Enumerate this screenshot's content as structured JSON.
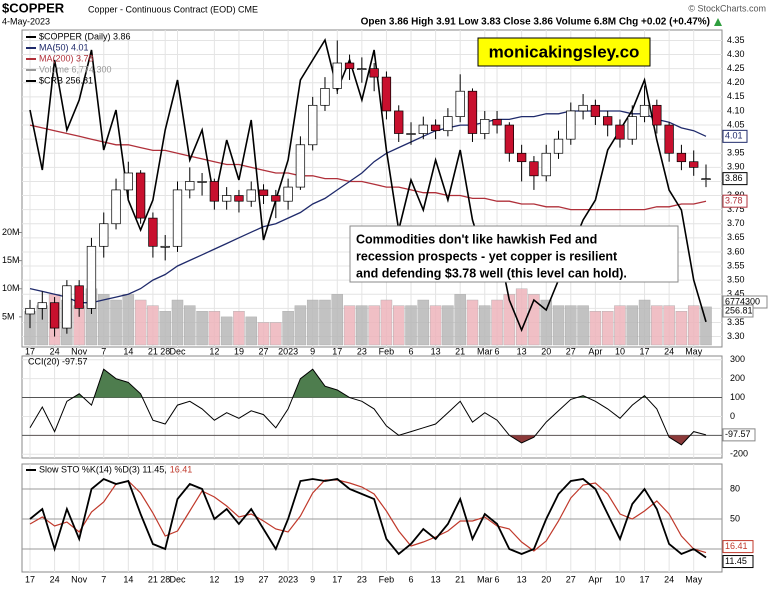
{
  "chart_data": {
    "type": "candlestick",
    "title": "$COPPER",
    "subtitle": "Copper - Continuous Contract (EOD) CME",
    "date": "4-May-2023",
    "quote": "Open 3.86 High 3.91 Low 3.83 Close 3.86 Volume 6.8M Chg +0.02 (+0.47%)",
    "credit": "© StockCharts.com",
    "watermark": "monicakingsley.co",
    "annotation": [
      "Commodities don't like hawkish Fed and",
      "recession prospects - yet copper is resilient",
      "and defending $3.78 well (this level can hold)."
    ],
    "price_name": "$COPPER (Daily) 3.86",
    "categories": [
      "17",
      null,
      "24",
      null,
      "Nov",
      null,
      "7",
      null,
      "14",
      null,
      "21",
      "28",
      "Dec",
      null,
      null,
      "12",
      null,
      "19",
      null,
      "27",
      null,
      "2023",
      null,
      "9",
      null,
      "17",
      null,
      "23",
      null,
      "Feb",
      null,
      "6",
      null,
      "13",
      null,
      "21",
      null,
      "Mar",
      "6",
      null,
      "13",
      null,
      "20",
      null,
      "27",
      null,
      "Apr",
      null,
      "10",
      null,
      "17",
      null,
      "24",
      null,
      "May",
      null
    ],
    "candles": [
      [
        3.38,
        3.43,
        3.33,
        3.4
      ],
      [
        3.4,
        3.46,
        3.36,
        3.42
      ],
      [
        3.42,
        3.44,
        3.3,
        3.33
      ],
      [
        3.33,
        3.5,
        3.31,
        3.48
      ],
      [
        3.48,
        3.5,
        3.37,
        3.4
      ],
      [
        3.4,
        3.65,
        3.38,
        3.62
      ],
      [
        3.62,
        3.74,
        3.58,
        3.7
      ],
      [
        3.7,
        3.86,
        3.68,
        3.82
      ],
      [
        3.82,
        3.92,
        3.79,
        3.88
      ],
      [
        3.88,
        3.89,
        3.7,
        3.72
      ],
      [
        3.72,
        3.74,
        3.58,
        3.62
      ],
      [
        3.62,
        3.66,
        3.57,
        3.62
      ],
      [
        3.62,
        3.85,
        3.6,
        3.82
      ],
      [
        3.82,
        3.9,
        3.79,
        3.85
      ],
      [
        3.85,
        3.88,
        3.8,
        3.85
      ],
      [
        3.85,
        3.86,
        3.75,
        3.78
      ],
      [
        3.78,
        3.83,
        3.75,
        3.8
      ],
      [
        3.8,
        3.82,
        3.74,
        3.78
      ],
      [
        3.78,
        3.85,
        3.76,
        3.82
      ],
      [
        3.82,
        3.84,
        3.77,
        3.8
      ],
      [
        3.8,
        3.82,
        3.72,
        3.78
      ],
      [
        3.78,
        3.86,
        3.75,
        3.83
      ],
      [
        3.83,
        4.01,
        3.82,
        3.98
      ],
      [
        3.98,
        4.15,
        3.96,
        4.12
      ],
      [
        4.12,
        4.22,
        4.1,
        4.18
      ],
      [
        4.18,
        4.35,
        4.16,
        4.27
      ],
      [
        4.27,
        4.3,
        4.21,
        4.25
      ],
      [
        4.25,
        4.29,
        4.2,
        4.25
      ],
      [
        4.25,
        4.27,
        4.17,
        4.22
      ],
      [
        4.22,
        4.24,
        4.07,
        4.1
      ],
      [
        4.1,
        4.12,
        3.99,
        4.02
      ],
      [
        4.02,
        4.06,
        3.98,
        4.02
      ],
      [
        4.02,
        4.08,
        4.0,
        4.05
      ],
      [
        4.05,
        4.07,
        4.0,
        4.03
      ],
      [
        4.03,
        4.11,
        4.01,
        4.08
      ],
      [
        4.08,
        4.23,
        4.06,
        4.17
      ],
      [
        4.17,
        4.18,
        3.99,
        4.02
      ],
      [
        4.02,
        4.1,
        4.0,
        4.07
      ],
      [
        4.07,
        4.1,
        4.02,
        4.05
      ],
      [
        4.05,
        4.06,
        3.92,
        3.95
      ],
      [
        3.95,
        3.98,
        3.85,
        3.92
      ],
      [
        3.92,
        3.94,
        3.82,
        3.87
      ],
      [
        3.87,
        3.98,
        3.85,
        3.95
      ],
      [
        3.95,
        4.03,
        3.93,
        4.0
      ],
      [
        4.0,
        4.13,
        3.98,
        4.1
      ],
      [
        4.1,
        4.16,
        4.07,
        4.12
      ],
      [
        4.12,
        4.14,
        4.05,
        4.08
      ],
      [
        4.08,
        4.1,
        4.01,
        4.05
      ],
      [
        4.05,
        4.07,
        3.97,
        4.0
      ],
      [
        4.0,
        4.12,
        3.98,
        4.08
      ],
      [
        4.08,
        4.19,
        4.06,
        4.12
      ],
      [
        4.12,
        4.14,
        4.02,
        4.05
      ],
      [
        4.05,
        4.06,
        3.92,
        3.95
      ],
      [
        3.95,
        3.98,
        3.89,
        3.92
      ],
      [
        3.92,
        3.96,
        3.87,
        3.9
      ],
      [
        3.86,
        3.91,
        3.83,
        3.86
      ]
    ],
    "up_color": "#ffffff",
    "down_color": "#c8102e",
    "ylim": [
      3.27,
      4.38
    ],
    "yticks": [
      {
        "value": 3.3,
        "label": "3.30"
      },
      {
        "value": 3.35,
        "label": "3.35"
      },
      {
        "value": 3.4,
        "label": "3.40"
      },
      {
        "value": 3.45,
        "label": "3.45"
      },
      {
        "value": 3.5,
        "label": "3.50"
      },
      {
        "value": 3.55,
        "label": "3.55"
      },
      {
        "value": 3.6,
        "label": "3.60"
      },
      {
        "value": 3.65,
        "label": "3.65"
      },
      {
        "value": 3.7,
        "label": "3.70"
      },
      {
        "value": 3.75,
        "label": "3.75"
      },
      {
        "value": 3.8,
        "label": "3.80"
      },
      {
        "value": 3.85,
        "label": "3.85"
      },
      {
        "value": 3.9,
        "label": "3.90"
      },
      {
        "value": 3.95,
        "label": "3.95"
      },
      {
        "value": 4.0,
        "label": "4.00"
      },
      {
        "value": 4.05,
        "label": "4.05"
      },
      {
        "value": 4.1,
        "label": "4.10"
      },
      {
        "value": 4.15,
        "label": "4.15"
      },
      {
        "value": 4.2,
        "label": "4.20"
      },
      {
        "value": 4.25,
        "label": "4.25"
      },
      {
        "value": 4.3,
        "label": "4.30"
      },
      {
        "value": 4.35,
        "label": "4.35"
      }
    ],
    "grid": true,
    "ma50": {
      "name": "MA(50) 4.01",
      "color": "#1f2a6b",
      "values": [
        3.47,
        3.46,
        3.45,
        3.44,
        3.42,
        3.42,
        3.43,
        3.44,
        3.45,
        3.47,
        3.5,
        3.52,
        3.55,
        3.57,
        3.59,
        3.61,
        3.63,
        3.65,
        3.67,
        3.69,
        3.7,
        3.72,
        3.74,
        3.77,
        3.79,
        3.82,
        3.85,
        3.88,
        3.92,
        3.95,
        3.97,
        3.99,
        4.01,
        4.03,
        4.04,
        4.05,
        4.05,
        4.06,
        4.07,
        4.07,
        4.08,
        4.08,
        4.09,
        4.09,
        4.1,
        4.1,
        4.1,
        4.1,
        4.1,
        4.09,
        4.09,
        4.07,
        4.06,
        4.04,
        4.03,
        4.01
      ]
    },
    "ma200": {
      "name": "MA(200) 3.78",
      "color": "#b0303a",
      "values": [
        4.05,
        4.04,
        4.03,
        4.02,
        4.01,
        4.0,
        3.99,
        3.98,
        3.98,
        3.97,
        3.96,
        3.96,
        3.95,
        3.94,
        3.93,
        3.92,
        3.91,
        3.91,
        3.9,
        3.89,
        3.88,
        3.88,
        3.87,
        3.87,
        3.86,
        3.86,
        3.85,
        3.85,
        3.84,
        3.83,
        3.83,
        3.82,
        3.81,
        3.81,
        3.8,
        3.8,
        3.79,
        3.79,
        3.78,
        3.78,
        3.77,
        3.77,
        3.76,
        3.76,
        3.75,
        3.75,
        3.75,
        3.75,
        3.75,
        3.75,
        3.75,
        3.76,
        3.76,
        3.77,
        3.77,
        3.78
      ]
    },
    "volume": {
      "name": "Volume 6,774,300",
      "tag": "6774300",
      "up_color": "#b8b8b8",
      "down_color": "#eeb4bc",
      "values": [
        6,
        7,
        9,
        8,
        7,
        10,
        9,
        8,
        9,
        8,
        7,
        6,
        8,
        7,
        6,
        6,
        5,
        6,
        5,
        4,
        4,
        6,
        7,
        8,
        8,
        9,
        7,
        7,
        7,
        8,
        7,
        7,
        8,
        7,
        7,
        9,
        8,
        7,
        8,
        9,
        10,
        9,
        8,
        7,
        7,
        7,
        6,
        6,
        7,
        7,
        8,
        7,
        7,
        6,
        7,
        6.7743
      ],
      "ylim": [
        0,
        56
      ],
      "yticks": [
        {
          "value": 5,
          "label": "5M"
        },
        {
          "value": 10,
          "label": "10M"
        },
        {
          "value": 15,
          "label": "15M"
        },
        {
          "value": 20,
          "label": "20M"
        }
      ]
    },
    "crb": {
      "name": "$CRB 256.81",
      "color": "#000000",
      "values": [
        278,
        272,
        283,
        276,
        279,
        284,
        274,
        278,
        269,
        266,
        269,
        276,
        281,
        273,
        276,
        269,
        275,
        271,
        277,
        265,
        269,
        273,
        281,
        283,
        285,
        280,
        283,
        279,
        284,
        274,
        266,
        271,
        268,
        273,
        269,
        274,
        267,
        263,
        265,
        259,
        256,
        259,
        258,
        261,
        264,
        267,
        269,
        274,
        276,
        278,
        281,
        275,
        270,
        268,
        261,
        256.81
      ]
    },
    "cci": {
      "name": "CCI(20) -97.57",
      "color": "#000000",
      "up_fill": "#4e7d4e",
      "down_fill": "#8c3a3a",
      "threshold": 100,
      "values": [
        -60,
        50,
        -80,
        80,
        120,
        60,
        250,
        200,
        180,
        120,
        -20,
        -40,
        60,
        80,
        40,
        -20,
        20,
        -10,
        30,
        10,
        -60,
        40,
        200,
        250,
        160,
        140,
        100,
        80,
        40,
        -50,
        -100,
        -80,
        -60,
        -40,
        20,
        80,
        -30,
        20,
        -20,
        -100,
        -140,
        -110,
        -30,
        30,
        90,
        110,
        80,
        40,
        -10,
        60,
        110,
        40,
        -110,
        -150,
        -80,
        -97.57
      ],
      "ylim": [
        -220,
        320
      ],
      "yticks": [
        300,
        200,
        100,
        0,
        -100,
        -200
      ]
    },
    "sto": {
      "k_name": "Slow STO %K(14) %D(3) 11.45,",
      "d_name": "16.41",
      "k_color": "#000000",
      "d_color": "#c0392b",
      "k": [
        50,
        60,
        20,
        60,
        30,
        80,
        90,
        85,
        88,
        55,
        25,
        20,
        70,
        85,
        80,
        50,
        60,
        45,
        60,
        40,
        20,
        50,
        88,
        90,
        88,
        90,
        80,
        75,
        70,
        30,
        15,
        25,
        40,
        30,
        45,
        70,
        30,
        55,
        45,
        20,
        15,
        20,
        50,
        75,
        88,
        90,
        80,
        55,
        30,
        65,
        80,
        60,
        25,
        15,
        20,
        11.45
      ],
      "d": [
        45,
        52,
        43,
        47,
        37,
        57,
        67,
        85,
        88,
        76,
        56,
        33,
        38,
        58,
        78,
        72,
        63,
        52,
        55,
        48,
        40,
        37,
        53,
        76,
        89,
        89,
        86,
        82,
        75,
        58,
        38,
        23,
        27,
        32,
        38,
        48,
        48,
        52,
        43,
        40,
        27,
        18,
        28,
        48,
        71,
        84,
        86,
        75,
        55,
        50,
        58,
        68,
        55,
        33,
        20,
        16.41
      ],
      "ylim": [
        0,
        100
      ],
      "yticks": [
        80,
        50,
        20
      ]
    }
  }
}
